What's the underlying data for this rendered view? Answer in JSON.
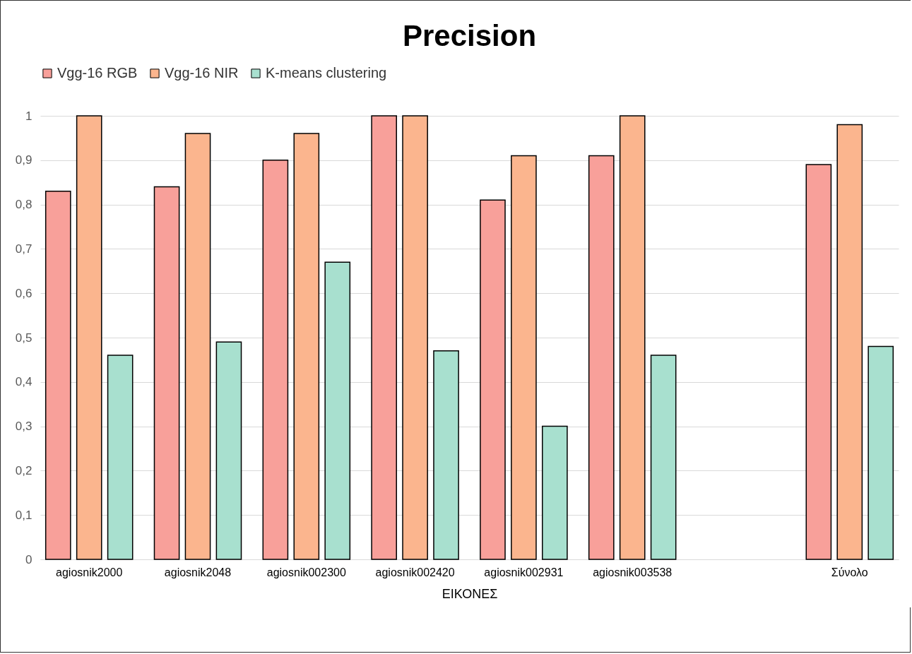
{
  "chart_data": {
    "type": "bar",
    "title": "Precision",
    "xlabel": "ΕΙΚΟΝΕΣ",
    "categories": [
      "agiosnik2000",
      "agiosnik2048",
      "agiosnik002300",
      "agiosnik002420",
      "agiosnik002931",
      "agiosnik003538",
      null,
      "Σύνολο"
    ],
    "series": [
      {
        "name": "Vgg-16 RGB",
        "color": "#f8a09a",
        "values": [
          0.83,
          0.84,
          0.9,
          1,
          0.81,
          0.91,
          null,
          0.89
        ]
      },
      {
        "name": "Vgg-16 NIR",
        "color": "#fbb58e",
        "values": [
          1,
          0.96,
          0.96,
          1,
          0.91,
          1,
          null,
          0.98
        ]
      },
      {
        "name": "K-means clustering",
        "color": "#a8e0cf",
        "values": [
          0.46,
          0.49,
          0.67,
          0.47,
          0.3,
          0.46,
          null,
          0.48
        ]
      }
    ],
    "ylim": [
      0,
      1
    ],
    "yticks": [
      0,
      {
        "value": 0.1,
        "label": "0,1"
      },
      {
        "value": 0.2,
        "label": "0,2"
      },
      {
        "value": 0.3,
        "label": "0,3"
      },
      {
        "value": 0.4,
        "label": "0,4"
      },
      {
        "value": 0.5,
        "label": "0,5"
      },
      {
        "value": 0.6,
        "label": "0,6"
      },
      {
        "value": 0.7,
        "label": "0,7"
      },
      {
        "value": 0.8,
        "label": "0,8"
      },
      {
        "value": 0.9,
        "label": "0,9"
      },
      1
    ],
    "grid": "y",
    "legend": "top"
  }
}
